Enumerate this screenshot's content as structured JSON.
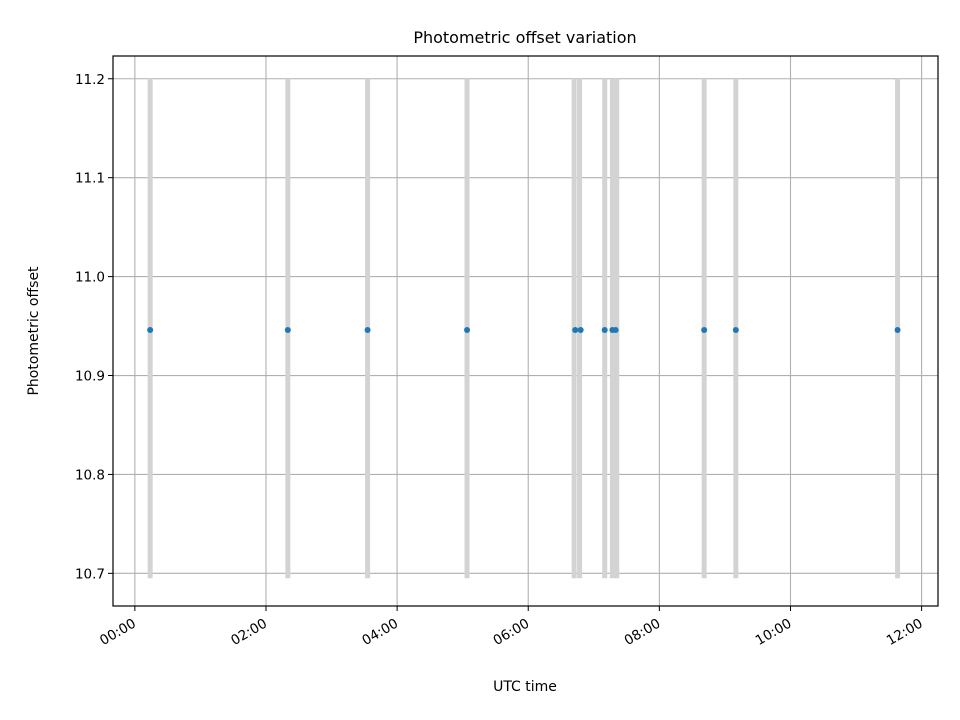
{
  "chart_data": {
    "type": "scatter",
    "title": "Photometric offset variation",
    "xlabel": "UTC time",
    "ylabel": "Photometric offset",
    "xlim": [
      "-00:20",
      "12:15"
    ],
    "ylim": [
      10.667,
      11.223
    ],
    "x_ticks": [
      "00:00",
      "02:00",
      "04:00",
      "06:00",
      "08:00",
      "10:00",
      "12:00"
    ],
    "y_ticks": [
      "10.7",
      "10.8",
      "10.9",
      "11.0",
      "11.1",
      "11.2"
    ],
    "grid": true,
    "series": [
      {
        "x": [
          "00:14",
          "02:20",
          "03:33",
          "05:04",
          "06:43",
          "06:48",
          "07:10",
          "07:17",
          "07:20",
          "08:41",
          "09:10",
          "11:38"
        ],
        "y": [
          10.946,
          10.946,
          10.946,
          10.946,
          10.946,
          10.946,
          10.946,
          10.946,
          10.946,
          10.946,
          10.946,
          10.946
        ],
        "color": "#1f77b4"
      }
    ],
    "vertical_bands": {
      "times": [
        "00:14",
        "02:20",
        "03:33",
        "05:04",
        "06:42",
        "06:47",
        "07:10",
        "07:17",
        "07:21",
        "08:41",
        "09:10",
        "11:38"
      ],
      "y_range": [
        10.695,
        11.2
      ],
      "color": "#d3d3d3"
    }
  }
}
